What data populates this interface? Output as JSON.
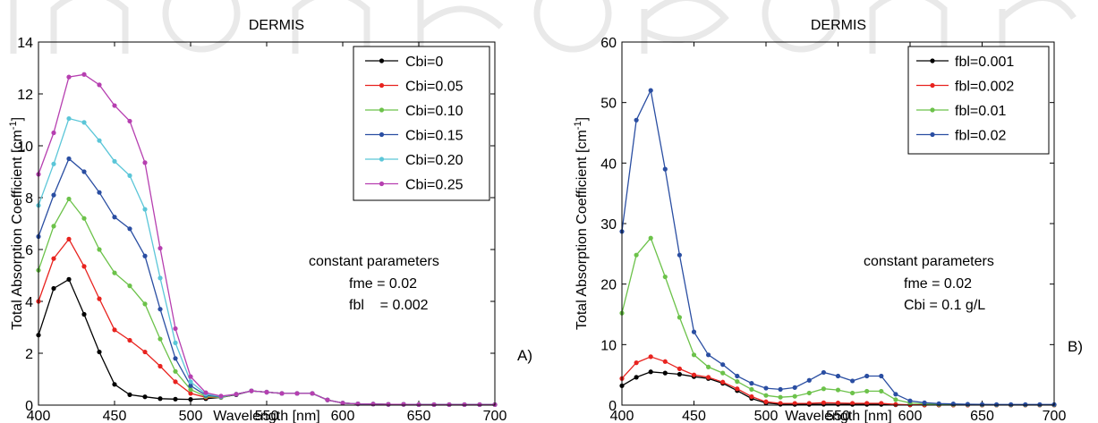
{
  "chart_data": [
    {
      "type": "line",
      "title": "DERMIS",
      "xlabel": "Wavelength [nm]",
      "ylabel": "Total Absorption Coefficient [cm",
      "ylabel_sup": "-1",
      "ylabel_close": "]",
      "xlim": [
        400,
        700
      ],
      "ylim": [
        0,
        14
      ],
      "xticks": [
        400,
        450,
        500,
        550,
        600,
        650,
        700
      ],
      "yticks": [
        0,
        2,
        4,
        6,
        8,
        10,
        12,
        14
      ],
      "grid": false,
      "legend_position": "top-right",
      "panel_label": "A)",
      "annotation": [
        "constant parameters",
        "fme = 0.02",
        "fbl    = 0.002"
      ],
      "x": [
        400,
        410,
        420,
        430,
        440,
        450,
        460,
        470,
        480,
        490,
        500,
        510,
        520,
        530,
        540,
        550,
        560,
        570,
        580,
        590,
        600,
        610,
        620,
        630,
        640,
        650,
        660,
        670,
        680,
        690,
        700
      ],
      "series": [
        {
          "name": "Cbi=0",
          "color": "#000000",
          "values": [
            2.7,
            4.5,
            4.85,
            3.5,
            2.05,
            0.8,
            0.4,
            0.32,
            0.25,
            0.23,
            0.22,
            0.25,
            0.3,
            0.4,
            0.55,
            0.5,
            0.45,
            0.45,
            0.45,
            0.2,
            0.08,
            0.05,
            0.04,
            0.03,
            0.03,
            0.02,
            0.02,
            0.02,
            0.02,
            0.02,
            0.02
          ]
        },
        {
          "name": "Cbi=0.05",
          "color": "#e8231f",
          "values": [
            4.0,
            5.65,
            6.4,
            5.35,
            4.1,
            2.9,
            2.5,
            2.05,
            1.5,
            0.9,
            0.45,
            0.3,
            0.3,
            0.42,
            0.55,
            0.5,
            0.45,
            0.45,
            0.45,
            0.2,
            0.08,
            0.05,
            0.04,
            0.03,
            0.03,
            0.02,
            0.02,
            0.02,
            0.02,
            0.02,
            0.02
          ]
        },
        {
          "name": "Cbi=0.10",
          "color": "#6cc24a",
          "values": [
            5.2,
            6.9,
            7.95,
            7.2,
            6.0,
            5.1,
            4.6,
            3.9,
            2.55,
            1.3,
            0.6,
            0.33,
            0.3,
            0.42,
            0.55,
            0.5,
            0.45,
            0.45,
            0.45,
            0.2,
            0.08,
            0.05,
            0.04,
            0.03,
            0.03,
            0.02,
            0.02,
            0.02,
            0.02,
            0.02,
            0.02
          ]
        },
        {
          "name": "Cbi=0.15",
          "color": "#2a4ea2",
          "values": [
            6.5,
            8.1,
            9.5,
            9.0,
            8.2,
            7.25,
            6.8,
            5.75,
            3.7,
            1.8,
            0.75,
            0.38,
            0.32,
            0.42,
            0.55,
            0.5,
            0.45,
            0.45,
            0.45,
            0.2,
            0.08,
            0.05,
            0.04,
            0.03,
            0.03,
            0.02,
            0.02,
            0.02,
            0.02,
            0.02,
            0.02
          ]
        },
        {
          "name": "Cbi=0.20",
          "color": "#5bc6d8",
          "values": [
            7.7,
            9.3,
            11.05,
            10.9,
            10.2,
            9.4,
            8.85,
            7.55,
            4.9,
            2.4,
            0.9,
            0.42,
            0.33,
            0.42,
            0.55,
            0.5,
            0.45,
            0.45,
            0.45,
            0.2,
            0.08,
            0.05,
            0.04,
            0.03,
            0.03,
            0.02,
            0.02,
            0.02,
            0.02,
            0.02,
            0.02
          ]
        },
        {
          "name": "Cbi=0.25",
          "color": "#b63fb0",
          "values": [
            8.9,
            10.5,
            12.65,
            12.75,
            12.35,
            11.55,
            10.95,
            9.35,
            6.05,
            2.95,
            1.1,
            0.48,
            0.35,
            0.42,
            0.55,
            0.5,
            0.45,
            0.45,
            0.45,
            0.2,
            0.08,
            0.05,
            0.04,
            0.03,
            0.03,
            0.02,
            0.02,
            0.02,
            0.02,
            0.02,
            0.02
          ]
        }
      ]
    },
    {
      "type": "line",
      "title": "DERMIS",
      "xlabel": "Wavelength [nm]",
      "ylabel": "Total Absorption Coefficient [cm",
      "ylabel_sup": "-1",
      "ylabel_close": "]",
      "xlim": [
        400,
        700
      ],
      "ylim": [
        0,
        60
      ],
      "xticks": [
        400,
        450,
        500,
        550,
        600,
        650,
        700
      ],
      "yticks": [
        0,
        10,
        20,
        30,
        40,
        50,
        60
      ],
      "grid": false,
      "legend_position": "top-right",
      "panel_label": "B)",
      "annotation": [
        "constant parameters",
        "fme = 0.02",
        "Cbi = 0.1 g/L"
      ],
      "x": [
        400,
        410,
        420,
        430,
        440,
        450,
        460,
        470,
        480,
        490,
        500,
        510,
        520,
        530,
        540,
        550,
        560,
        570,
        580,
        590,
        600,
        610,
        620,
        630,
        640,
        650,
        660,
        670,
        680,
        690,
        700
      ],
      "series": [
        {
          "name": "fbl=0.001",
          "color": "#000000",
          "values": [
            3.2,
            4.6,
            5.5,
            5.3,
            5.1,
            4.7,
            4.4,
            3.6,
            2.4,
            1.1,
            0.35,
            0.15,
            0.12,
            0.12,
            0.15,
            0.14,
            0.12,
            0.12,
            0.12,
            0.06,
            0.03,
            0.02,
            0.01,
            0.01,
            0.01,
            0.01,
            0.01,
            0.01,
            0.01,
            0.01,
            0.01
          ]
        },
        {
          "name": "fbl=0.002",
          "color": "#e8231f",
          "values": [
            4.4,
            7.0,
            8.0,
            7.2,
            6.0,
            5.0,
            4.6,
            3.8,
            2.7,
            1.4,
            0.55,
            0.3,
            0.28,
            0.3,
            0.4,
            0.36,
            0.3,
            0.3,
            0.3,
            0.12,
            0.06,
            0.04,
            0.03,
            0.02,
            0.02,
            0.02,
            0.02,
            0.02,
            0.02,
            0.02,
            0.02
          ]
        },
        {
          "name": "fbl=0.01",
          "color": "#6cc24a",
          "values": [
            15.2,
            24.8,
            27.6,
            21.2,
            14.5,
            8.3,
            6.3,
            5.3,
            3.9,
            2.6,
            1.6,
            1.3,
            1.45,
            2.0,
            2.7,
            2.5,
            2.0,
            2.3,
            2.3,
            0.9,
            0.35,
            0.2,
            0.12,
            0.1,
            0.08,
            0.06,
            0.05,
            0.05,
            0.05,
            0.05,
            0.05
          ]
        },
        {
          "name": "fbl=0.02",
          "color": "#2a4ea2",
          "values": [
            28.7,
            47.1,
            52.0,
            39.0,
            24.8,
            12.1,
            8.3,
            6.7,
            4.8,
            3.6,
            2.8,
            2.6,
            2.9,
            4.1,
            5.4,
            4.8,
            4.0,
            4.8,
            4.8,
            1.8,
            0.7,
            0.4,
            0.25,
            0.2,
            0.15,
            0.12,
            0.1,
            0.1,
            0.1,
            0.1,
            0.1
          ]
        }
      ]
    }
  ]
}
